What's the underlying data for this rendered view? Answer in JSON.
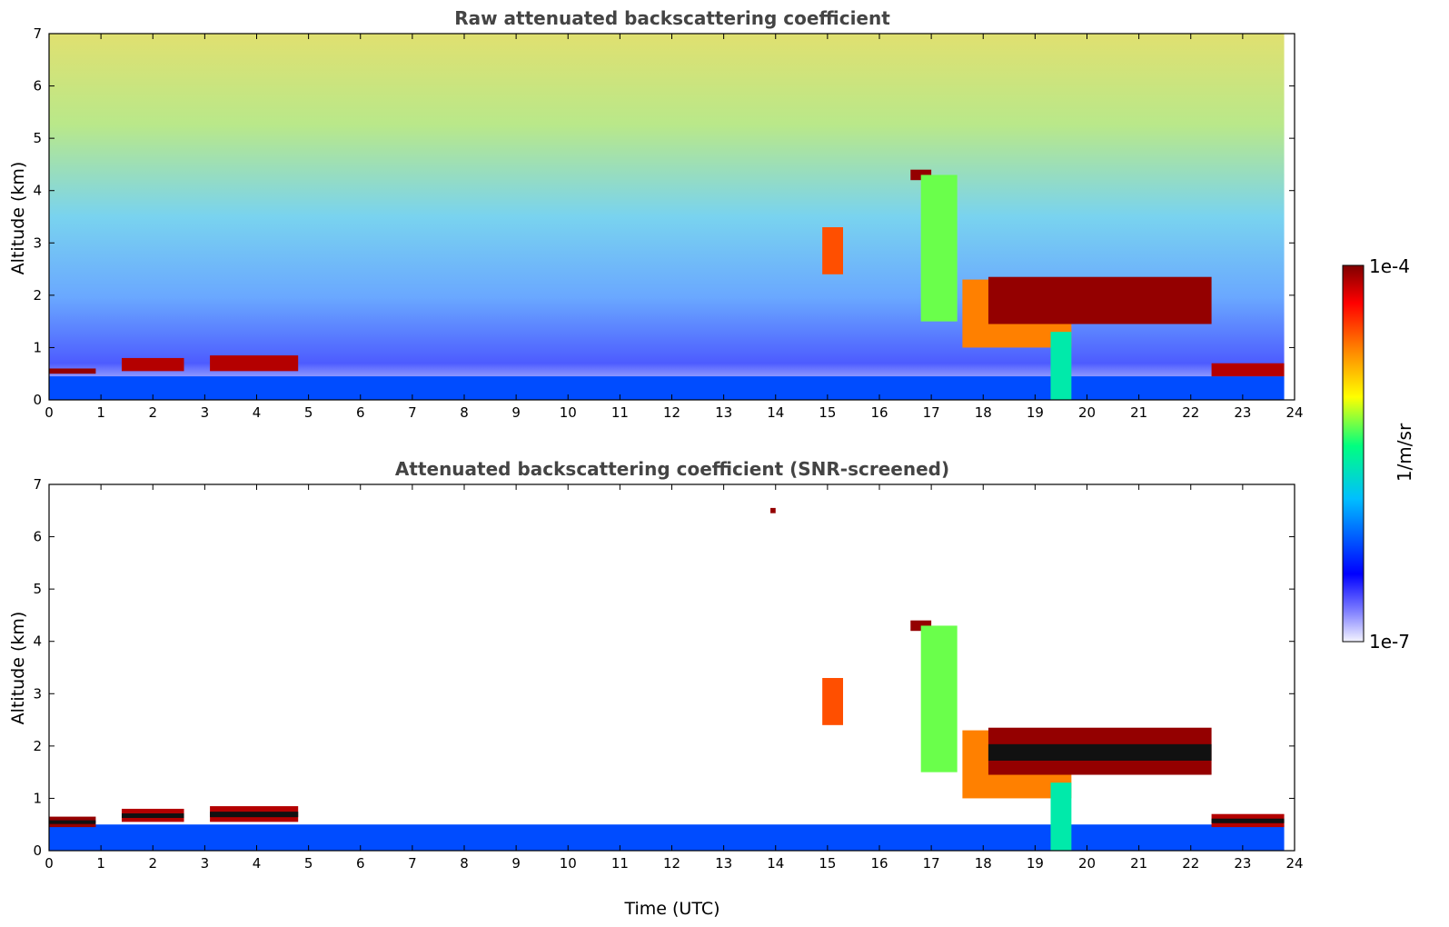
{
  "chart_data": [
    {
      "type": "heatmap",
      "title": "Raw attenuated backscattering coefficient",
      "xlabel": "",
      "ylabel": "Altitude (km)",
      "xlim": [
        0,
        24
      ],
      "ylim": [
        0,
        7
      ],
      "xticks": [
        "0",
        "1",
        "2",
        "3",
        "4",
        "5",
        "6",
        "7",
        "8",
        "9",
        "10",
        "11",
        "12",
        "13",
        "14",
        "15",
        "16",
        "17",
        "18",
        "19",
        "20",
        "21",
        "22",
        "23",
        "24"
      ],
      "yticks": [
        "0",
        "1",
        "2",
        "3",
        "4",
        "5",
        "6",
        "7"
      ],
      "features": [
        {
          "kind": "surface_layer",
          "x": [
            0,
            23.8
          ],
          "y": [
            0,
            0.45
          ],
          "level": 0.2
        },
        {
          "kind": "layer",
          "x": [
            0,
            0.9
          ],
          "y": [
            0.5,
            0.6
          ],
          "level": 0.98
        },
        {
          "kind": "layer",
          "x": [
            1.4,
            2.6
          ],
          "y": [
            0.55,
            0.8
          ],
          "level": 0.95
        },
        {
          "kind": "layer",
          "x": [
            3.1,
            4.8
          ],
          "y": [
            0.55,
            0.85
          ],
          "level": 0.95
        },
        {
          "kind": "cloud",
          "x": [
            14.9,
            15.3
          ],
          "y": [
            2.4,
            3.3
          ],
          "level": 0.8
        },
        {
          "kind": "cloud",
          "x": [
            16.6,
            17.0
          ],
          "y": [
            4.2,
            4.4
          ],
          "level": 0.98
        },
        {
          "kind": "cloud",
          "x": [
            16.8,
            17.5
          ],
          "y": [
            1.5,
            4.3
          ],
          "level": 0.55
        },
        {
          "kind": "cloud",
          "x": [
            17.6,
            19.7
          ],
          "y": [
            1.0,
            2.3
          ],
          "level": 0.75
        },
        {
          "kind": "layer",
          "x": [
            18.1,
            22.4
          ],
          "y": [
            1.45,
            2.35
          ],
          "level": 0.98
        },
        {
          "kind": "layer",
          "x": [
            22.4,
            23.8
          ],
          "y": [
            0.45,
            0.7
          ],
          "level": 0.95
        },
        {
          "kind": "precip",
          "x": [
            19.3,
            19.7
          ],
          "y": [
            0,
            1.3
          ],
          "level": 0.45
        }
      ]
    },
    {
      "type": "heatmap",
      "title": "Attenuated backscattering coefficient (SNR-screened)",
      "xlabel": "Time (UTC)",
      "ylabel": "Altitude (km)",
      "xlim": [
        0,
        24
      ],
      "ylim": [
        0,
        7
      ],
      "xticks": [
        "0",
        "1",
        "2",
        "3",
        "4",
        "5",
        "6",
        "7",
        "8",
        "9",
        "10",
        "11",
        "12",
        "13",
        "14",
        "15",
        "16",
        "17",
        "18",
        "19",
        "20",
        "21",
        "22",
        "23",
        "24"
      ],
      "yticks": [
        "0",
        "1",
        "2",
        "3",
        "4",
        "5",
        "6",
        "7"
      ],
      "features": [
        {
          "kind": "surface_layer",
          "x": [
            0,
            23.8
          ],
          "y": [
            0,
            0.5
          ],
          "level": 0.2
        },
        {
          "kind": "layer",
          "x": [
            0,
            0.9
          ],
          "y": [
            0.45,
            0.65
          ],
          "level": 0.98
        },
        {
          "kind": "layer",
          "x": [
            1.4,
            2.6
          ],
          "y": [
            0.55,
            0.8
          ],
          "level": 0.95
        },
        {
          "kind": "layer",
          "x": [
            3.1,
            4.8
          ],
          "y": [
            0.55,
            0.85
          ],
          "level": 0.95
        },
        {
          "kind": "cloud",
          "x": [
            13.9,
            14.0
          ],
          "y": [
            6.45,
            6.55
          ],
          "level": 0.98
        },
        {
          "kind": "cloud",
          "x": [
            14.9,
            15.3
          ],
          "y": [
            2.4,
            3.3
          ],
          "level": 0.8
        },
        {
          "kind": "cloud",
          "x": [
            16.6,
            17.0
          ],
          "y": [
            4.2,
            4.4
          ],
          "level": 0.98
        },
        {
          "kind": "cloud",
          "x": [
            16.8,
            17.5
          ],
          "y": [
            1.5,
            4.3
          ],
          "level": 0.55
        },
        {
          "kind": "cloud",
          "x": [
            17.6,
            19.7
          ],
          "y": [
            1.0,
            2.3
          ],
          "level": 0.75
        },
        {
          "kind": "layer",
          "x": [
            18.1,
            22.4
          ],
          "y": [
            1.45,
            2.35
          ],
          "level": 0.98
        },
        {
          "kind": "layer",
          "x": [
            22.4,
            23.8
          ],
          "y": [
            0.45,
            0.7
          ],
          "level": 0.95
        },
        {
          "kind": "precip",
          "x": [
            19.3,
            19.7
          ],
          "y": [
            0,
            1.3
          ],
          "level": 0.45
        }
      ]
    }
  ],
  "colorbar": {
    "label": "1/m/sr",
    "max_label": "1e-4",
    "min_label": "1e-7",
    "colormap": [
      "#ffffff",
      "#0000ff",
      "#00bfff",
      "#00ff80",
      "#ffff00",
      "#ff8000",
      "#ff0000",
      "#7f0000"
    ]
  }
}
